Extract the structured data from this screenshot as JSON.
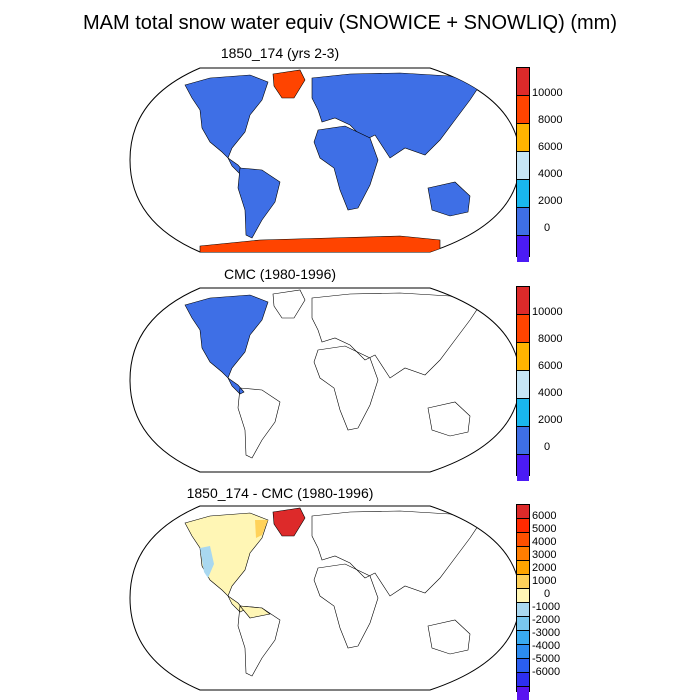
{
  "title": "MAM total snow water equiv (SNOWICE + SNOWLIQ) (mm)",
  "panels": [
    {
      "title": "1850_174 (yrs 2-3)",
      "colorbar": {
        "labels": [
          "10000",
          "8000",
          "6000",
          "4000",
          "2000",
          "0"
        ],
        "colors": [
          "#dd2a2a",
          "#ff4400",
          "#ffb400",
          "#c6e6f6",
          "#19b7ee",
          "#3e6fe6",
          "#4b1bf5"
        ]
      }
    },
    {
      "title": "CMC (1980-1996)",
      "colorbar": {
        "labels": [
          "10000",
          "8000",
          "6000",
          "4000",
          "2000",
          "0"
        ],
        "colors": [
          "#dd2a2a",
          "#ff4400",
          "#ffb400",
          "#c6e6f6",
          "#19b7ee",
          "#3e6fe6",
          "#4b1bf5"
        ]
      }
    },
    {
      "title": "1850_174 - CMC (1980-1996)",
      "colorbar": {
        "labels": [
          "6000",
          "5000",
          "4000",
          "3000",
          "2000",
          "1000",
          "0",
          "-1000",
          "-2000",
          "-3000",
          "-4000",
          "-5000",
          "-6000"
        ],
        "colors": [
          "#dd2a2a",
          "#ff2a00",
          "#ff5000",
          "#ff7d00",
          "#ffa500",
          "#ffd25a",
          "#fff6b5",
          "#a9d8f0",
          "#79c7ef",
          "#39aaf0",
          "#2c8cf0",
          "#2a5ef0",
          "#2d2ff0",
          "#5a13f0"
        ]
      }
    }
  ]
}
